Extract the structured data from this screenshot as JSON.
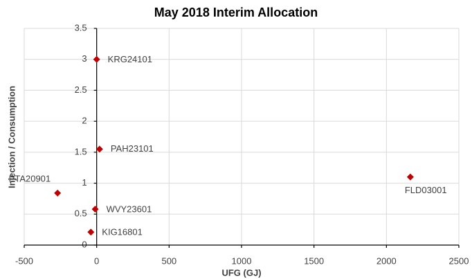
{
  "chart_data": {
    "type": "scatter",
    "title": "May 2018 Interim Allocation",
    "x_label": "UFG (GJ)",
    "y_label": "Injection / Consumption",
    "series": [
      {
        "color": "#c00000",
        "x": [
          0,
          20,
          -270,
          2165,
          -10,
          -40
        ],
        "values": [
          3.0,
          1.55,
          0.84,
          1.1,
          0.58,
          0.21
        ],
        "labels": [
          "KRG24101",
          "PAH23101",
          "PTA20901",
          "FLD03001",
          "WVY23601",
          "KIG16801"
        ]
      }
    ],
    "xlim": [
      -500,
      2500
    ],
    "xticks": [
      -500,
      0,
      500,
      1000,
      1500,
      2000,
      2500
    ],
    "ylim": [
      0,
      3.5
    ],
    "yticks": [
      0,
      0.5,
      1,
      1.5,
      2,
      2.5,
      3,
      3.5
    ],
    "grid": true
  }
}
